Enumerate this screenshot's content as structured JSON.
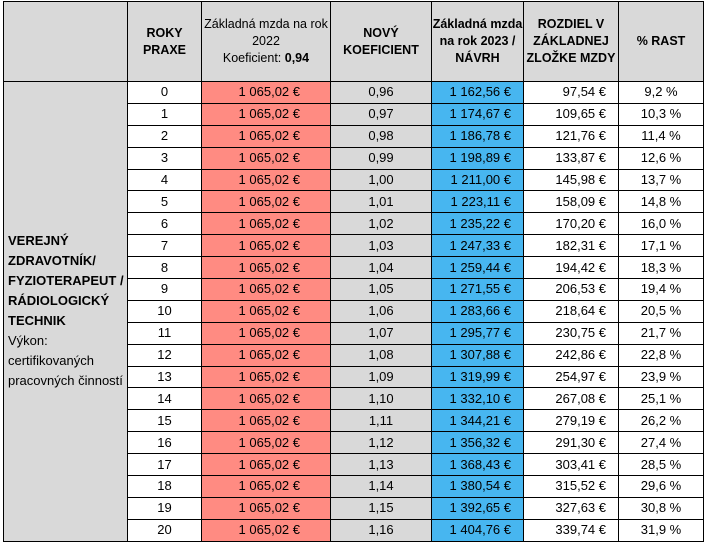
{
  "headers": {
    "roky_praxe": "ROKY PRAXE",
    "zakladna_2022_line1": "Základná mzda na rok 2022",
    "koeficient_label": "Koeficient:",
    "koeficient_value": "0,94",
    "novy_koeficient": "NOVÝ KOEFICIENT",
    "zakladna_2023": "Základná mzda na rok 2023 / NÁVRH",
    "rozdiel": "ROZDIEL V ZÁKLADNEJ ZLOŽKE MZDY",
    "rast": "% RAST"
  },
  "category": {
    "title": "VEREJNÝ ZDRAVOTNÍK/ FYZIOTERAPEUT / RÁDIOLOGICKÝ TECHNIK",
    "description": "Výkon: certifikovaných pracovných činností"
  },
  "colors": {
    "header_grey": "#d9d9d9",
    "salary_2022_red": "#ff8b82",
    "salary_2023_blue": "#47b6f0"
  },
  "rows": [
    {
      "years": "0",
      "salary2022": "1 065,02 €",
      "coef": "0,96",
      "salary2023": "1 162,56 €",
      "diff": "97,54 €",
      "growth": "9,2 %"
    },
    {
      "years": "1",
      "salary2022": "1 065,02 €",
      "coef": "0,97",
      "salary2023": "1 174,67 €",
      "diff": "109,65 €",
      "growth": "10,3 %"
    },
    {
      "years": "2",
      "salary2022": "1 065,02 €",
      "coef": "0,98",
      "salary2023": "1 186,78 €",
      "diff": "121,76 €",
      "growth": "11,4 %"
    },
    {
      "years": "3",
      "salary2022": "1 065,02 €",
      "coef": "0,99",
      "salary2023": "1 198,89 €",
      "diff": "133,87 €",
      "growth": "12,6 %"
    },
    {
      "years": "4",
      "salary2022": "1 065,02 €",
      "coef": "1,00",
      "salary2023": "1 211,00 €",
      "diff": "145,98 €",
      "growth": "13,7 %"
    },
    {
      "years": "5",
      "salary2022": "1 065,02 €",
      "coef": "1,01",
      "salary2023": "1 223,11 €",
      "diff": "158,09 €",
      "growth": "14,8 %"
    },
    {
      "years": "6",
      "salary2022": "1 065,02 €",
      "coef": "1,02",
      "salary2023": "1 235,22 €",
      "diff": "170,20 €",
      "growth": "16,0 %"
    },
    {
      "years": "7",
      "salary2022": "1 065,02 €",
      "coef": "1,03",
      "salary2023": "1 247,33 €",
      "diff": "182,31 €",
      "growth": "17,1 %"
    },
    {
      "years": "8",
      "salary2022": "1 065,02 €",
      "coef": "1,04",
      "salary2023": "1 259,44 €",
      "diff": "194,42 €",
      "growth": "18,3 %"
    },
    {
      "years": "9",
      "salary2022": "1 065,02 €",
      "coef": "1,05",
      "salary2023": "1 271,55 €",
      "diff": "206,53 €",
      "growth": "19,4 %"
    },
    {
      "years": "10",
      "salary2022": "1 065,02 €",
      "coef": "1,06",
      "salary2023": "1 283,66 €",
      "diff": "218,64 €",
      "growth": "20,5 %"
    },
    {
      "years": "11",
      "salary2022": "1 065,02 €",
      "coef": "1,07",
      "salary2023": "1 295,77 €",
      "diff": "230,75 €",
      "growth": "21,7 %"
    },
    {
      "years": "12",
      "salary2022": "1 065,02 €",
      "coef": "1,08",
      "salary2023": "1 307,88 €",
      "diff": "242,86 €",
      "growth": "22,8 %"
    },
    {
      "years": "13",
      "salary2022": "1 065,02 €",
      "coef": "1,09",
      "salary2023": "1 319,99 €",
      "diff": "254,97 €",
      "growth": "23,9 %"
    },
    {
      "years": "14",
      "salary2022": "1 065,02 €",
      "coef": "1,10",
      "salary2023": "1 332,10 €",
      "diff": "267,08 €",
      "growth": "25,1 %"
    },
    {
      "years": "15",
      "salary2022": "1 065,02 €",
      "coef": "1,11",
      "salary2023": "1 344,21 €",
      "diff": "279,19 €",
      "growth": "26,2 %"
    },
    {
      "years": "16",
      "salary2022": "1 065,02 €",
      "coef": "1,12",
      "salary2023": "1 356,32 €",
      "diff": "291,30 €",
      "growth": "27,4 %"
    },
    {
      "years": "17",
      "salary2022": "1 065,02 €",
      "coef": "1,13",
      "salary2023": "1 368,43 €",
      "diff": "303,41 €",
      "growth": "28,5 %"
    },
    {
      "years": "18",
      "salary2022": "1 065,02 €",
      "coef": "1,14",
      "salary2023": "1 380,54 €",
      "diff": "315,52 €",
      "growth": "29,6 %"
    },
    {
      "years": "19",
      "salary2022": "1 065,02 €",
      "coef": "1,15",
      "salary2023": "1 392,65 €",
      "diff": "327,63 €",
      "growth": "30,8 %"
    },
    {
      "years": "20",
      "salary2022": "1 065,02 €",
      "coef": "1,16",
      "salary2023": "1 404,76 €",
      "diff": "339,74 €",
      "growth": "31,9 %"
    }
  ]
}
